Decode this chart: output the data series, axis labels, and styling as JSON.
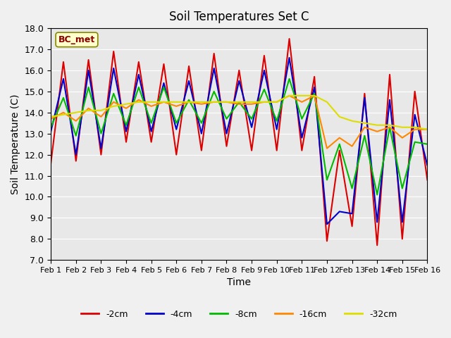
{
  "title": "Soil Temperatures Set C",
  "xlabel": "Time",
  "ylabel": "Soil Temperature (C)",
  "ylim": [
    7.0,
    18.0
  ],
  "yticks": [
    7.0,
    8.0,
    9.0,
    10.0,
    11.0,
    12.0,
    13.0,
    14.0,
    15.0,
    16.0,
    17.0,
    18.0
  ],
  "xtick_labels": [
    "Feb 1",
    "Feb 2",
    "Feb 3",
    "Feb 4",
    "Feb 5",
    "Feb 6",
    "Feb 7",
    "Feb 8",
    "Feb 9",
    "Feb 10",
    "Feb 11",
    "Feb 12",
    "Feb 13",
    "Feb 14",
    "Feb 15",
    "Feb 16"
  ],
  "background_color": "#e8e8e8",
  "legend_label": "BC_met",
  "series": [
    {
      "label": "-2cm",
      "color": "#dd0000",
      "data": [
        11.6,
        16.4,
        11.7,
        16.5,
        12.0,
        16.9,
        12.6,
        16.4,
        12.6,
        16.3,
        12.0,
        16.2,
        12.2,
        16.8,
        12.4,
        16.0,
        12.2,
        16.7,
        12.2,
        17.5,
        12.2,
        15.7,
        7.9,
        12.2,
        8.6,
        14.9,
        7.7,
        15.8,
        8.0,
        15.0,
        10.8
      ]
    },
    {
      "label": "-4cm",
      "color": "#0000cc",
      "data": [
        13.1,
        15.6,
        12.0,
        16.0,
        12.3,
        16.1,
        13.1,
        15.8,
        13.1,
        15.4,
        13.2,
        15.5,
        13.0,
        16.1,
        13.0,
        15.5,
        13.3,
        16.0,
        13.2,
        16.6,
        12.8,
        15.2,
        8.7,
        9.3,
        9.2,
        14.7,
        8.8,
        14.6,
        8.8,
        13.9,
        11.5
      ]
    },
    {
      "label": "-8cm",
      "color": "#00bb00",
      "data": [
        13.3,
        14.7,
        12.9,
        15.2,
        13.0,
        14.9,
        13.4,
        15.2,
        13.5,
        15.2,
        13.5,
        14.6,
        13.5,
        15.0,
        13.7,
        14.5,
        13.7,
        15.1,
        13.6,
        15.6,
        13.7,
        14.9,
        10.8,
        12.5,
        10.4,
        12.9,
        10.1,
        13.3,
        10.4,
        12.6,
        12.5
      ]
    },
    {
      "label": "-16cm",
      "color": "#ff8800",
      "data": [
        13.7,
        14.0,
        13.6,
        14.2,
        13.8,
        14.5,
        14.2,
        14.6,
        14.3,
        14.5,
        14.3,
        14.5,
        14.4,
        14.5,
        14.5,
        14.4,
        14.4,
        14.5,
        14.5,
        14.8,
        14.5,
        14.8,
        12.3,
        12.8,
        12.4,
        13.3,
        13.1,
        13.3,
        12.8,
        13.2,
        13.2
      ]
    },
    {
      "label": "-32cm",
      "color": "#dddd00",
      "data": [
        13.8,
        13.9,
        14.0,
        14.1,
        14.1,
        14.3,
        14.4,
        14.5,
        14.5,
        14.5,
        14.5,
        14.5,
        14.5,
        14.5,
        14.5,
        14.5,
        14.5,
        14.5,
        14.5,
        14.8,
        14.8,
        14.8,
        14.5,
        13.8,
        13.6,
        13.5,
        13.4,
        13.4,
        13.3,
        13.3,
        13.2
      ]
    }
  ]
}
